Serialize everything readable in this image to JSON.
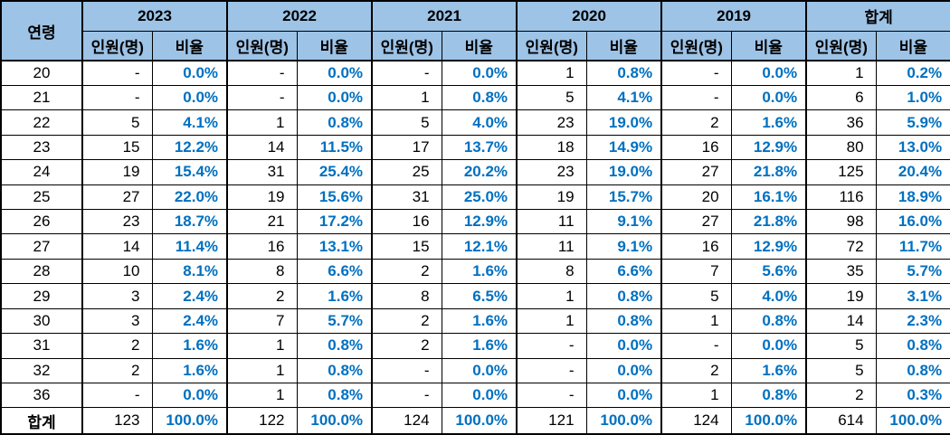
{
  "colors": {
    "header_bg": "#9DC3E6",
    "percent_text": "#0070C0",
    "border": "#000000",
    "cell_bg": "#FFFFFF"
  },
  "table": {
    "age_header": "연령",
    "sub_headers": {
      "count": "인원(명)",
      "ratio": "비율"
    },
    "year_groups": [
      "2023",
      "2022",
      "2021",
      "2020",
      "2019",
      "합계"
    ],
    "rows": [
      {
        "age": "20",
        "cells": [
          [
            "-",
            "0.0%"
          ],
          [
            "-",
            "0.0%"
          ],
          [
            "-",
            "0.0%"
          ],
          [
            "1",
            "0.8%"
          ],
          [
            "-",
            "0.0%"
          ],
          [
            "1",
            "0.2%"
          ]
        ]
      },
      {
        "age": "21",
        "cells": [
          [
            "-",
            "0.0%"
          ],
          [
            "-",
            "0.0%"
          ],
          [
            "1",
            "0.8%"
          ],
          [
            "5",
            "4.1%"
          ],
          [
            "-",
            "0.0%"
          ],
          [
            "6",
            "1.0%"
          ]
        ]
      },
      {
        "age": "22",
        "cells": [
          [
            "5",
            "4.1%"
          ],
          [
            "1",
            "0.8%"
          ],
          [
            "5",
            "4.0%"
          ],
          [
            "23",
            "19.0%"
          ],
          [
            "2",
            "1.6%"
          ],
          [
            "36",
            "5.9%"
          ]
        ]
      },
      {
        "age": "23",
        "cells": [
          [
            "15",
            "12.2%"
          ],
          [
            "14",
            "11.5%"
          ],
          [
            "17",
            "13.7%"
          ],
          [
            "18",
            "14.9%"
          ],
          [
            "16",
            "12.9%"
          ],
          [
            "80",
            "13.0%"
          ]
        ]
      },
      {
        "age": "24",
        "cells": [
          [
            "19",
            "15.4%"
          ],
          [
            "31",
            "25.4%"
          ],
          [
            "25",
            "20.2%"
          ],
          [
            "23",
            "19.0%"
          ],
          [
            "27",
            "21.8%"
          ],
          [
            "125",
            "20.4%"
          ]
        ]
      },
      {
        "age": "25",
        "cells": [
          [
            "27",
            "22.0%"
          ],
          [
            "19",
            "15.6%"
          ],
          [
            "31",
            "25.0%"
          ],
          [
            "19",
            "15.7%"
          ],
          [
            "20",
            "16.1%"
          ],
          [
            "116",
            "18.9%"
          ]
        ]
      },
      {
        "age": "26",
        "cells": [
          [
            "23",
            "18.7%"
          ],
          [
            "21",
            "17.2%"
          ],
          [
            "16",
            "12.9%"
          ],
          [
            "11",
            "9.1%"
          ],
          [
            "27",
            "21.8%"
          ],
          [
            "98",
            "16.0%"
          ]
        ]
      },
      {
        "age": "27",
        "cells": [
          [
            "14",
            "11.4%"
          ],
          [
            "16",
            "13.1%"
          ],
          [
            "15",
            "12.1%"
          ],
          [
            "11",
            "9.1%"
          ],
          [
            "16",
            "12.9%"
          ],
          [
            "72",
            "11.7%"
          ]
        ]
      },
      {
        "age": "28",
        "cells": [
          [
            "10",
            "8.1%"
          ],
          [
            "8",
            "6.6%"
          ],
          [
            "2",
            "1.6%"
          ],
          [
            "8",
            "6.6%"
          ],
          [
            "7",
            "5.6%"
          ],
          [
            "35",
            "5.7%"
          ]
        ]
      },
      {
        "age": "29",
        "cells": [
          [
            "3",
            "2.4%"
          ],
          [
            "2",
            "1.6%"
          ],
          [
            "8",
            "6.5%"
          ],
          [
            "1",
            "0.8%"
          ],
          [
            "5",
            "4.0%"
          ],
          [
            "19",
            "3.1%"
          ]
        ]
      },
      {
        "age": "30",
        "cells": [
          [
            "3",
            "2.4%"
          ],
          [
            "7",
            "5.7%"
          ],
          [
            "2",
            "1.6%"
          ],
          [
            "1",
            "0.8%"
          ],
          [
            "1",
            "0.8%"
          ],
          [
            "14",
            "2.3%"
          ]
        ]
      },
      {
        "age": "31",
        "cells": [
          [
            "2",
            "1.6%"
          ],
          [
            "1",
            "0.8%"
          ],
          [
            "2",
            "1.6%"
          ],
          [
            "-",
            "0.0%"
          ],
          [
            "-",
            "0.0%"
          ],
          [
            "5",
            "0.8%"
          ]
        ]
      },
      {
        "age": "32",
        "cells": [
          [
            "2",
            "1.6%"
          ],
          [
            "1",
            "0.8%"
          ],
          [
            "-",
            "0.0%"
          ],
          [
            "-",
            "0.0%"
          ],
          [
            "2",
            "1.6%"
          ],
          [
            "5",
            "0.8%"
          ]
        ]
      },
      {
        "age": "36",
        "cells": [
          [
            "-",
            "0.0%"
          ],
          [
            "1",
            "0.8%"
          ],
          [
            "-",
            "0.0%"
          ],
          [
            "-",
            "0.0%"
          ],
          [
            "1",
            "0.8%"
          ],
          [
            "2",
            "0.3%"
          ]
        ]
      },
      {
        "age": "합계",
        "is_total": true,
        "cells": [
          [
            "123",
            "100.0%"
          ],
          [
            "122",
            "100.0%"
          ],
          [
            "124",
            "100.0%"
          ],
          [
            "121",
            "100.0%"
          ],
          [
            "124",
            "100.0%"
          ],
          [
            "614",
            "100.0%"
          ]
        ]
      }
    ]
  }
}
